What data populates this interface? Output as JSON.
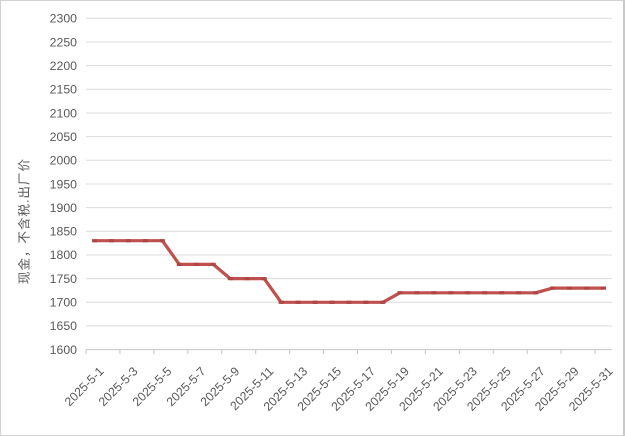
{
  "chart_data": {
    "type": "line",
    "title": "",
    "xlabel": "",
    "ylabel": "现金，不含税.出厂价",
    "x": [
      "2025-5-1",
      "2025-5-2",
      "2025-5-3",
      "2025-5-4",
      "2025-5-5",
      "2025-5-6",
      "2025-5-7",
      "2025-5-8",
      "2025-5-9",
      "2025-5-10",
      "2025-5-11",
      "2025-5-12",
      "2025-5-13",
      "2025-5-14",
      "2025-5-15",
      "2025-5-16",
      "2025-5-17",
      "2025-5-18",
      "2025-5-19",
      "2025-5-20",
      "2025-5-21",
      "2025-5-22",
      "2025-5-23",
      "2025-5-24",
      "2025-5-25",
      "2025-5-26",
      "2025-5-27",
      "2025-5-28",
      "2025-5-29",
      "2025-5-30",
      "2025-5-31"
    ],
    "values": [
      1830,
      1830,
      1830,
      1830,
      1830,
      1780,
      1780,
      1780,
      1750,
      1750,
      1750,
      1700,
      1700,
      1700,
      1700,
      1700,
      1700,
      1700,
      1720,
      1720,
      1720,
      1720,
      1720,
      1720,
      1720,
      1720,
      1720,
      1730,
      1730,
      1730,
      1730
    ],
    "visible_x_tick_labels": [
      "2025-5-1",
      "2025-5-3",
      "2025-5-5",
      "2025-5-7",
      "2025-5-9",
      "2025-5-11",
      "2025-5-13",
      "2025-5-15",
      "2025-5-17",
      "2025-5-19",
      "2025-5-21",
      "2025-5-23",
      "2025-5-25",
      "2025-5-27",
      "2025-5-29",
      "2025-5-31"
    ],
    "x_label_interval": 2,
    "ylim": [
      1600,
      2300
    ],
    "ytick_step": 50,
    "grid": true,
    "legend_position": "none",
    "colors": {
      "line": "#C0504D",
      "marker": "#AE4643",
      "gridline": "#DCDCDC",
      "axis": "#C4C4C4",
      "label": "#595959"
    }
  }
}
